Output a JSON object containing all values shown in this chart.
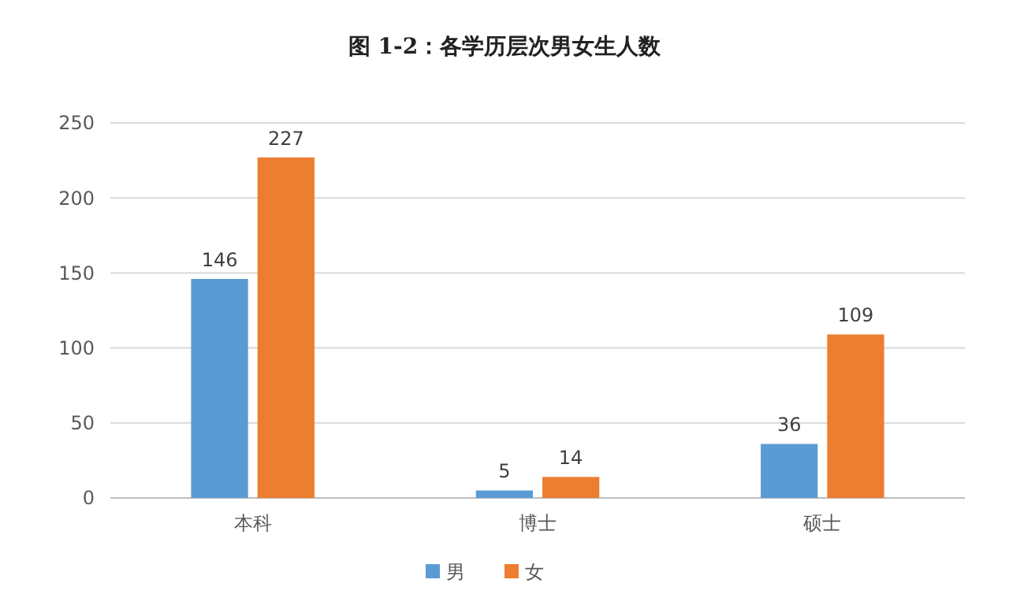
{
  "chart_data": {
    "type": "bar",
    "title": "图 1-2：各学历层次男女生人数",
    "categories": [
      "本科",
      "博士",
      "硕士"
    ],
    "series": [
      {
        "name": "男",
        "color": "#5b9bd5",
        "values": [
          146,
          5,
          36
        ]
      },
      {
        "name": "女",
        "color": "#ed7d31",
        "values": [
          227,
          14,
          109
        ]
      }
    ],
    "ylim": [
      0,
      250
    ],
    "yticks": [
      0,
      50,
      100,
      150,
      200,
      250
    ],
    "grid": "y",
    "legend": "bottom",
    "data_labels": true
  }
}
